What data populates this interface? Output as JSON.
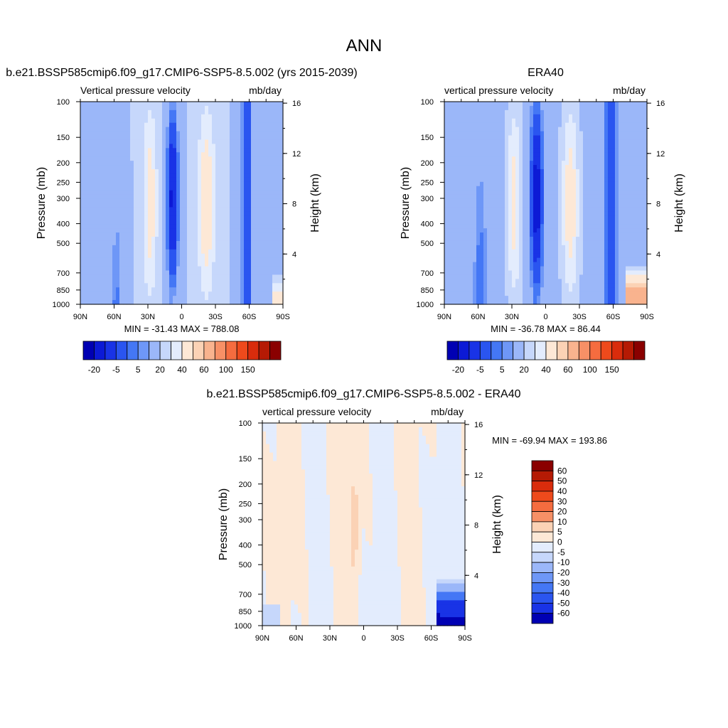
{
  "main_title": "ANN",
  "colors": {
    "blues": [
      "#00007f",
      "#0000b3",
      "#0c1ad6",
      "#1933e6",
      "#2a55f0",
      "#4477f5",
      "#6e97f7",
      "#9bb7f9",
      "#c6d7fb",
      "#e3ecfd"
    ],
    "reds": [
      "#fde8d6",
      "#fbd2b5",
      "#f9b38e",
      "#f79066",
      "#f56c3f",
      "#ee4a1c",
      "#d92c0c",
      "#b51a04",
      "#8a0000"
    ]
  },
  "chart_data": [
    {
      "type": "heatmap",
      "title": "b.e21.BSSP585cmip6.f09_g17.CMIP6-SSP5-8.5.002 (yrs 2015-2039)",
      "left_label": "Vertical pressure velocity",
      "right_label": "mb/day",
      "ylabel": "Pressure (mb)",
      "y2label": "Height (km)",
      "x_ticks": [
        "90N",
        "60N",
        "30N",
        "0",
        "30S",
        "60S",
        "90S"
      ],
      "y_ticks": [
        "100",
        "150",
        "200",
        "250",
        "300",
        "400",
        "500",
        "700",
        "850",
        "1000"
      ],
      "y2_ticks": [
        "16",
        "12",
        "8",
        "4"
      ],
      "stats": "MIN = -31.43  MAX = 788.08",
      "colorbar_labels": [
        "-20",
        "-5",
        "5",
        "20",
        "40",
        "60",
        "100",
        "150"
      ]
    },
    {
      "type": "heatmap",
      "title": "ERA40",
      "left_label": "vertical pressure velocity",
      "right_label": "mb/day",
      "ylabel": "Pressure (mb)",
      "y2label": "Height (km)",
      "x_ticks": [
        "90N",
        "60N",
        "30N",
        "0",
        "30S",
        "60S",
        "90S"
      ],
      "y_ticks": [
        "100",
        "150",
        "200",
        "250",
        "300",
        "400",
        "500",
        "700",
        "850",
        "1000"
      ],
      "y2_ticks": [
        "16",
        "12",
        "8",
        "4"
      ],
      "stats": "MIN = -36.78  MAX =  86.44",
      "colorbar_labels": [
        "-20",
        "-5",
        "5",
        "20",
        "40",
        "60",
        "100",
        "150"
      ]
    },
    {
      "type": "heatmap",
      "title": "b.e21.BSSP585cmip6.f09_g17.CMIP6-SSP5-8.5.002 - ERA40",
      "left_label": "vertical pressure velocity",
      "right_label": "mb/day",
      "ylabel": "Pressure (mb)",
      "y2label": "Height (km)",
      "x_ticks": [
        "90N",
        "60N",
        "30N",
        "0",
        "30S",
        "60S",
        "90S"
      ],
      "y_ticks": [
        "100",
        "150",
        "200",
        "250",
        "300",
        "400",
        "500",
        "700",
        "850",
        "1000"
      ],
      "y2_ticks": [
        "16",
        "12",
        "8",
        "4"
      ],
      "stats": "MIN = -69.94  MAX = 193.86",
      "colorbar_labels": [
        "60",
        "50",
        "40",
        "30",
        "20",
        "10",
        "5",
        "0",
        "-5",
        "-10",
        "-20",
        "-30",
        "-40",
        "-50",
        "-60"
      ]
    }
  ]
}
